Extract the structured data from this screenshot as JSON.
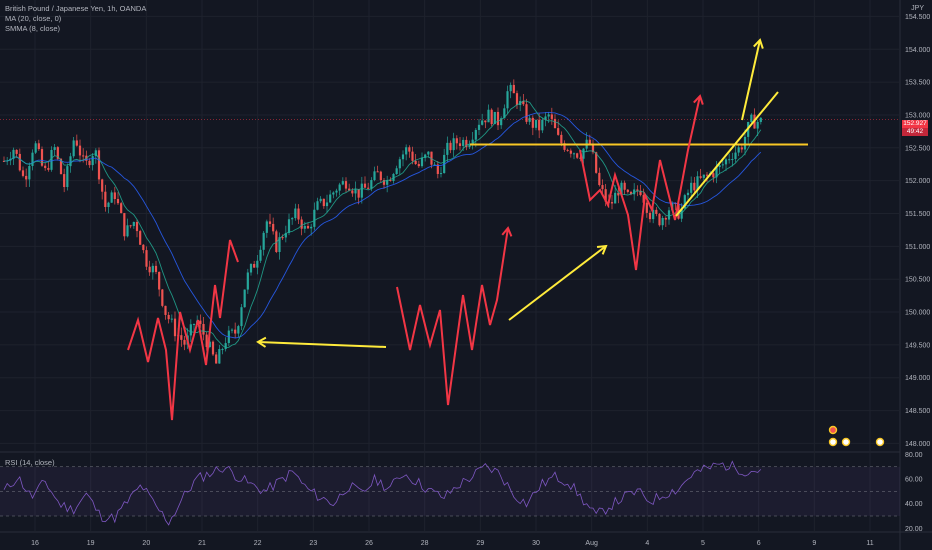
{
  "legend": {
    "symbol": "British Pound / Japanese Yen, 1h, OANDA",
    "ma": "MA (20, close, 0)",
    "smma": "SMMA (8, close)",
    "rsi": "RSI (14, close)"
  },
  "currency": "JPY",
  "last_price": "152.927",
  "countdown": "49:42",
  "colors": {
    "background": "#131722",
    "candle_up": "#26a69a",
    "candle_down": "#ef5350",
    "ma": "#2962ff",
    "smma": "#22ab94",
    "rsi": "#7e57c2",
    "annotation_red": "#f23645",
    "annotation_yellow": "#ffeb3b"
  },
  "chart_data": [
    {
      "type": "candlestick",
      "x_ticks": [
        "16",
        "19",
        "20",
        "21",
        "22",
        "23",
        "26",
        "28",
        "29",
        "30",
        "Aug",
        "4",
        "5",
        "6",
        "9",
        "11"
      ],
      "y_ticks": [
        "154.500",
        "154.000",
        "153.500",
        "153.000",
        "152.500",
        "152.000",
        "151.500",
        "151.000",
        "150.500",
        "150.000",
        "149.500",
        "149.000",
        "148.500",
        "148.000"
      ],
      "ylim": [
        147.9,
        154.75
      ],
      "series": [
        {
          "name": "MA (20, close, 0)"
        },
        {
          "name": "SMMA (8, close)"
        }
      ],
      "close_path": [
        152.3,
        152.5,
        152.0,
        152.6,
        152.1,
        152.5,
        151.9,
        152.7,
        152.2,
        152.5,
        151.6,
        151.8,
        151.2,
        151.4,
        150.8,
        150.6,
        150.0,
        149.7,
        149.5,
        149.9,
        149.6,
        149.2,
        149.6,
        149.7,
        150.5,
        150.8,
        151.4,
        151.0,
        151.3,
        151.5,
        151.2,
        151.6,
        151.7,
        151.9,
        152.0,
        151.8,
        151.9,
        152.1,
        152.0,
        152.3,
        152.5,
        152.2,
        152.4,
        152.1,
        152.5,
        152.6,
        152.6,
        152.9,
        153.0,
        152.9,
        153.4,
        153.2,
        152.9,
        152.8,
        153.0,
        152.6,
        152.5,
        152.4,
        152.6,
        151.9,
        151.6,
        151.9,
        151.7,
        151.9,
        151.5,
        151.4,
        151.6,
        151.5,
        151.9,
        152.0,
        152.1,
        152.2,
        152.4,
        152.5,
        152.9,
        152.9
      ],
      "horizontal_level": 152.55,
      "current_price": 152.927
    },
    {
      "type": "line",
      "name": "RSI (14, close)",
      "y_ticks": [
        "80.00",
        "60.00",
        "40.00",
        "20.00"
      ],
      "ylim": [
        17,
        82
      ],
      "bands": [
        70,
        50,
        30
      ],
      "values": [
        50,
        62,
        45,
        58,
        40,
        35,
        48,
        30,
        28,
        42,
        55,
        38,
        25,
        45,
        60,
        65,
        70,
        62,
        55,
        50,
        58,
        66,
        52,
        45,
        40,
        55,
        48,
        60,
        52,
        65,
        58,
        50,
        45,
        55,
        62,
        70,
        65,
        48,
        40,
        55,
        62,
        58,
        44,
        30,
        38,
        45,
        50,
        42,
        48,
        52,
        64,
        68,
        72,
        70,
        66,
        68
      ]
    }
  ]
}
